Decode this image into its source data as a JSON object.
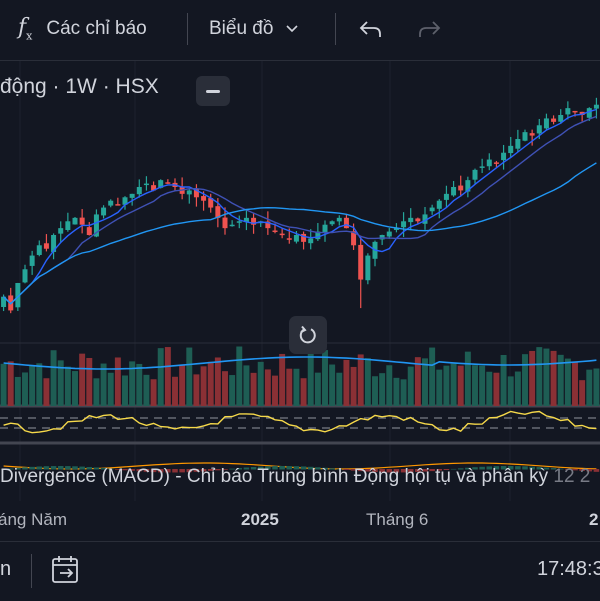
{
  "toolbar": {
    "indicators_label": "Các chỉ báo",
    "chart_type_label": "Biểu đồ",
    "fx_glyph": "f",
    "fx_sub": "x"
  },
  "legend": {
    "symbol_text": "động · 1W · HSX"
  },
  "macd": {
    "label": "Divergence (MACD) - Chỉ báo Trung bình Động hội tụ và phân kỳ",
    "values": "12 2"
  },
  "xaxis": {
    "ticks": [
      "áng Năm",
      "2025",
      "Tháng 6",
      "2"
    ]
  },
  "bottom": {
    "left_text": "n",
    "time": "17:48:3"
  },
  "colors": {
    "background": "#131722",
    "up": "#26a69a",
    "down": "#ef5350",
    "ma_fast": "#2962ff",
    "ma_slow": "#2196f3",
    "rsi": "#f6d94a"
  },
  "chart_data": {
    "type": "candlestick",
    "interval": "1W",
    "series_price_level": [
      40,
      36,
      44,
      48,
      52,
      55,
      54,
      58,
      60,
      62,
      63,
      61,
      58,
      64,
      66,
      68,
      67,
      69,
      70,
      72,
      73,
      71,
      74,
      73,
      72,
      70,
      71,
      69,
      68,
      66,
      63,
      60,
      61,
      62,
      63,
      61,
      62,
      60,
      59,
      58,
      57,
      58,
      56,
      57,
      59,
      61,
      62,
      63,
      60,
      55,
      45,
      52,
      56,
      58,
      59,
      60,
      62,
      63,
      62,
      64,
      66,
      68,
      70,
      72,
      71,
      74,
      77,
      78,
      80,
      79,
      82,
      84,
      86,
      88,
      87,
      90,
      92,
      91,
      93,
      95,
      94,
      93,
      95,
      96
    ]
  }
}
